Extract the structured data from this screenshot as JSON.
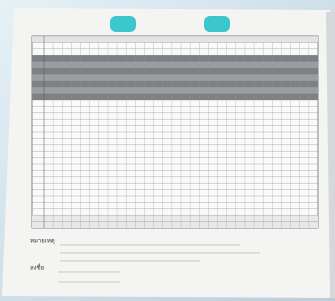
{
  "form": {
    "note_label": "หมายเหตุ",
    "sign_label": "ลงชื่อ"
  }
}
